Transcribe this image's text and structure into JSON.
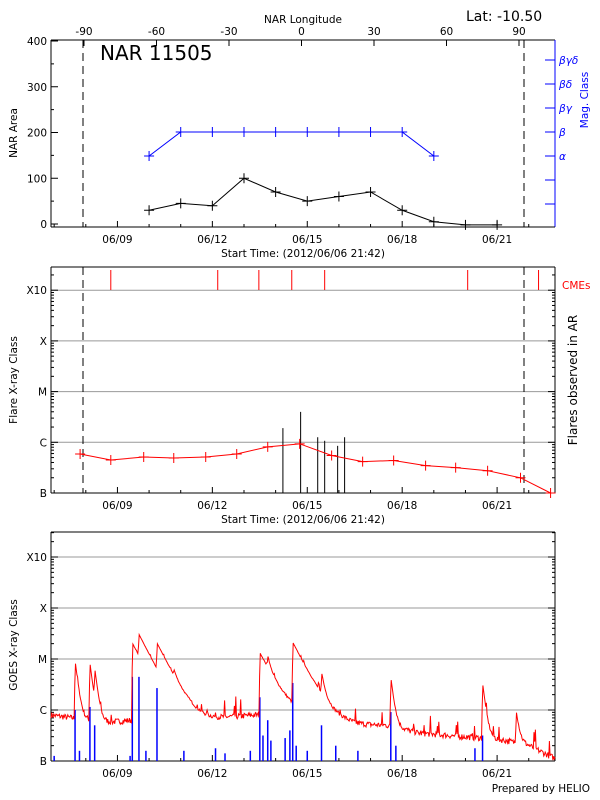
{
  "header": {
    "lat_label": "Lat: -10.50",
    "region_label": "NAR 11505",
    "credit": "Prepared by HELIO"
  },
  "colors": {
    "axis": "#000000",
    "mag": "#0000ff",
    "flare": "#ff0000",
    "grid": "#999999",
    "goes_short": "#0000ff"
  },
  "chart_data": [
    {
      "type": "line",
      "title": "NAR 11505",
      "xlabel": "Start Time: (2012/06/06 21:42)",
      "ylabel": "NAR Area",
      "y2label": "Mag. Class",
      "top_xlabel": "NAR Longitude",
      "xlim_day_of_june": [
        6.9,
        22.83
      ],
      "ylim": [
        0,
        400
      ],
      "yticks": [
        "0",
        "100",
        "200",
        "300",
        "400"
      ],
      "xticks": [
        {
          "day": 9,
          "label": "06/09"
        },
        {
          "day": 12,
          "label": "06/12"
        },
        {
          "day": 15,
          "label": "06/15"
        },
        {
          "day": 18,
          "label": "06/18"
        },
        {
          "day": 21,
          "label": "06/21"
        }
      ],
      "longitude_ticks": [
        {
          "deg": -90,
          "label": "-90"
        },
        {
          "deg": -60,
          "label": "-60"
        },
        {
          "deg": -30,
          "label": "-30"
        },
        {
          "deg": 0,
          "label": "0"
        },
        {
          "deg": 30,
          "label": "30"
        },
        {
          "deg": 60,
          "label": "60"
        },
        {
          "deg": 90,
          "label": "90"
        }
      ],
      "limb_days": [
        7.9,
        21.8
      ],
      "mag_classes": [
        "α",
        "β",
        "βγ",
        "βδ",
        "βγδ"
      ],
      "series": [
        {
          "name": "NAR Area",
          "x": [
            10,
            11,
            12,
            13,
            14,
            15,
            16,
            17,
            18,
            19,
            20,
            21
          ],
          "values": [
            30,
            45,
            40,
            100,
            70,
            50,
            60,
            70,
            30,
            5,
            -2,
            -2
          ]
        },
        {
          "name": "Mag. Class",
          "x": [
            10,
            11,
            12,
            13,
            14,
            15,
            16,
            17,
            18,
            19
          ],
          "values": [
            "α",
            "β",
            "β",
            "β",
            "β",
            "β",
            "β",
            "β",
            "β",
            "α"
          ]
        }
      ]
    },
    {
      "type": "line",
      "xlabel": "Start Time: (2012/06/06 21:42)",
      "ylabel": "Flare X-ray Class",
      "y2label": "Flares observed in AR",
      "cme_label": "CMEs",
      "class_ticks": [
        {
          "label": "B",
          "log_flux": -7
        },
        {
          "label": "C",
          "log_flux": -6
        },
        {
          "label": "M",
          "log_flux": -5
        },
        {
          "label": "X",
          "log_flux": -4
        },
        {
          "label": "X10",
          "log_flux": -3
        }
      ],
      "xticks": [
        {
          "day": 9,
          "label": "06/09"
        },
        {
          "day": 12,
          "label": "06/12"
        },
        {
          "day": 15,
          "label": "06/15"
        },
        {
          "day": 18,
          "label": "06/18"
        },
        {
          "day": 21,
          "label": "06/21"
        }
      ],
      "background_flux": {
        "x": [
          7.82,
          8.79,
          9.83,
          10.78,
          11.79,
          12.77,
          13.75,
          14.76,
          15.77,
          16.75,
          17.73,
          18.74,
          19.69,
          20.7,
          21.74,
          22.69
        ],
        "log_flux": [
          -6.23,
          -6.35,
          -6.29,
          -6.31,
          -6.29,
          -6.23,
          -6.09,
          -6.03,
          -6.26,
          -6.38,
          -6.36,
          -6.46,
          -6.5,
          -6.56,
          -6.7,
          -7.0
        ]
      },
      "flares": {
        "x": [
          14.23,
          14.79,
          15.33,
          15.55,
          15.96,
          16.18
        ],
        "log_flux": [
          -5.72,
          -5.4,
          -5.9,
          -5.97,
          -6.07,
          -5.9
        ]
      },
      "cmes": [
        8.79,
        12.17,
        13.47,
        14.51,
        15.55,
        20.07,
        22.31
      ]
    },
    {
      "type": "line",
      "ylabel": "GOES X-ray Class",
      "class_ticks": [
        {
          "label": "B",
          "log_flux": -7
        },
        {
          "label": "C",
          "log_flux": -6
        },
        {
          "label": "M",
          "log_flux": -5
        },
        {
          "label": "X",
          "log_flux": -4
        },
        {
          "label": "X10",
          "log_flux": -3
        }
      ],
      "xticks": [
        {
          "day": 9,
          "label": "06/09"
        },
        {
          "day": 12,
          "label": "06/12"
        },
        {
          "day": 15,
          "label": "06/15"
        },
        {
          "day": 18,
          "label": "06/18"
        },
        {
          "day": 21,
          "label": "06/21"
        }
      ],
      "long_channel_baseline": {
        "x": [
          6.9,
          7.5,
          8.5,
          9.5,
          10.5,
          11.5,
          12.5,
          13.3,
          14.2,
          15.2,
          15.8,
          16.5,
          17.5,
          18.5,
          19.5,
          20.5,
          21.3,
          22.0,
          22.5,
          22.83
        ],
        "log_flux": [
          -6.1,
          -6.15,
          -6.25,
          -6.2,
          -6.25,
          -6.25,
          -6.15,
          -6.1,
          -6.1,
          -6.15,
          -6.25,
          -6.3,
          -6.3,
          -6.45,
          -6.5,
          -6.55,
          -6.6,
          -6.7,
          -6.85,
          -6.95
        ]
      },
      "long_channel_peaks": {
        "x": [
          7.66,
          8.13,
          8.28,
          9.47,
          9.68,
          10.25,
          10.78,
          13.5,
          13.75,
          14.54,
          15.46,
          17.64,
          20.54,
          21.61
        ],
        "log_flux": [
          -5.05,
          -5.1,
          -5.3,
          -4.7,
          -4.72,
          -4.85,
          -5.8,
          -4.9,
          -5.3,
          -4.7,
          -5.5,
          -5.4,
          -5.5,
          -6.15
        ]
      },
      "short_channel_spikes": {
        "x": [
          7.0,
          7.66,
          7.8,
          8.13,
          8.28,
          9.4,
          9.47,
          9.68,
          9.9,
          10.25,
          11.1,
          12.1,
          12.4,
          13.2,
          13.5,
          13.6,
          13.75,
          13.85,
          14.3,
          14.45,
          14.54,
          14.65,
          15.0,
          15.45,
          15.9,
          16.6,
          17.64,
          17.8,
          20.3,
          20.54
        ],
        "log_flux": [
          -6.9,
          -6.0,
          -6.8,
          -5.94,
          -6.3,
          -6.9,
          -5.35,
          -5.35,
          -6.8,
          -5.57,
          -6.8,
          -6.75,
          -6.85,
          -6.8,
          -5.75,
          -6.5,
          -6.2,
          -6.6,
          -6.55,
          -6.4,
          -5.47,
          -6.7,
          -6.8,
          -6.3,
          -6.7,
          -6.8,
          -6.04,
          -6.7,
          -6.75,
          -6.5
        ]
      }
    }
  ]
}
